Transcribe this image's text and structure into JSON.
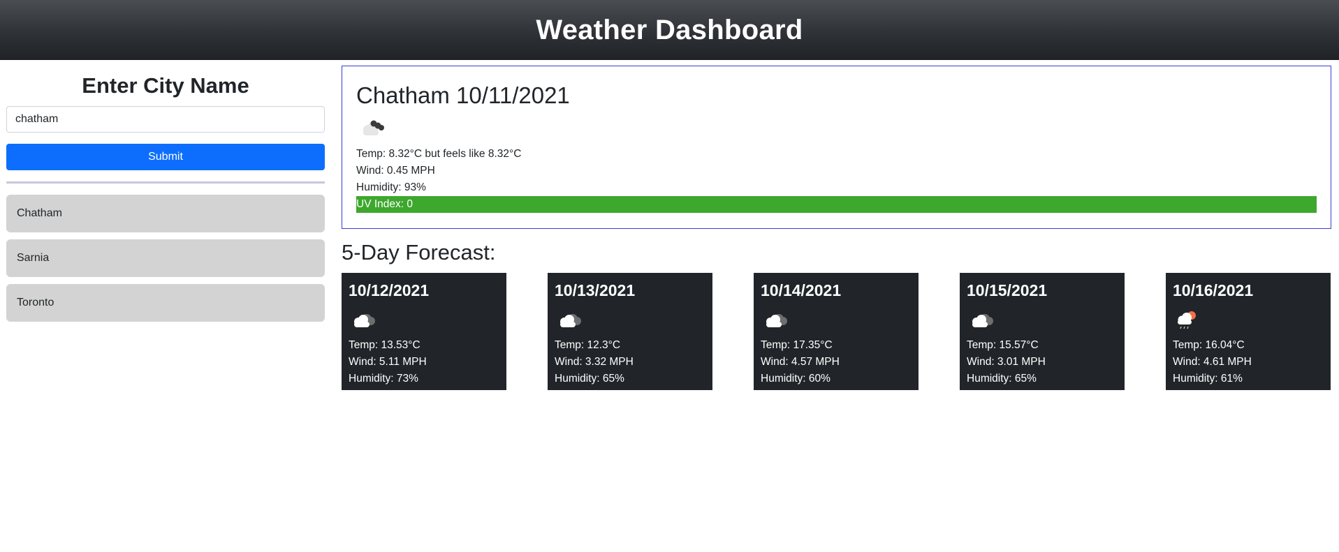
{
  "header": {
    "title": "Weather Dashboard"
  },
  "search": {
    "heading": "Enter City Name",
    "input_value": "chatham",
    "submit_label": "Submit"
  },
  "history": [
    {
      "label": "Chatham"
    },
    {
      "label": "Sarnia"
    },
    {
      "label": "Toronto"
    }
  ],
  "current": {
    "title": "Chatham 10/11/2021",
    "icon": "broken-clouds-night-icon",
    "temp": "Temp: 8.32°C but feels like 8.32°C",
    "wind": "Wind: 0.45 MPH",
    "humidity": "Humidity: 93%",
    "uv": "UV Index: 0",
    "uv_color": "#3ea72d"
  },
  "forecast": {
    "title": "5-Day Forecast:",
    "days": [
      {
        "date": "10/12/2021",
        "icon": "broken-clouds-icon",
        "temp": "Temp: 13.53°C",
        "wind": "Wind: 5.11 MPH",
        "humidity": "Humidity: 73%"
      },
      {
        "date": "10/13/2021",
        "icon": "broken-clouds-icon",
        "temp": "Temp: 12.3°C",
        "wind": "Wind: 3.32 MPH",
        "humidity": "Humidity: 65%"
      },
      {
        "date": "10/14/2021",
        "icon": "broken-clouds-icon",
        "temp": "Temp: 17.35°C",
        "wind": "Wind: 4.57 MPH",
        "humidity": "Humidity: 60%"
      },
      {
        "date": "10/15/2021",
        "icon": "broken-clouds-icon",
        "temp": "Temp: 15.57°C",
        "wind": "Wind: 3.01 MPH",
        "humidity": "Humidity: 65%"
      },
      {
        "date": "10/16/2021",
        "icon": "light-rain-sun-icon",
        "temp": "Temp: 16.04°C",
        "wind": "Wind: 4.61 MPH",
        "humidity": "Humidity: 61%"
      }
    ]
  },
  "colors": {
    "accent": "#0d6efd",
    "card_bg": "#212529",
    "history_bg": "#d3d3d3",
    "current_border": "#3b3bd6"
  }
}
